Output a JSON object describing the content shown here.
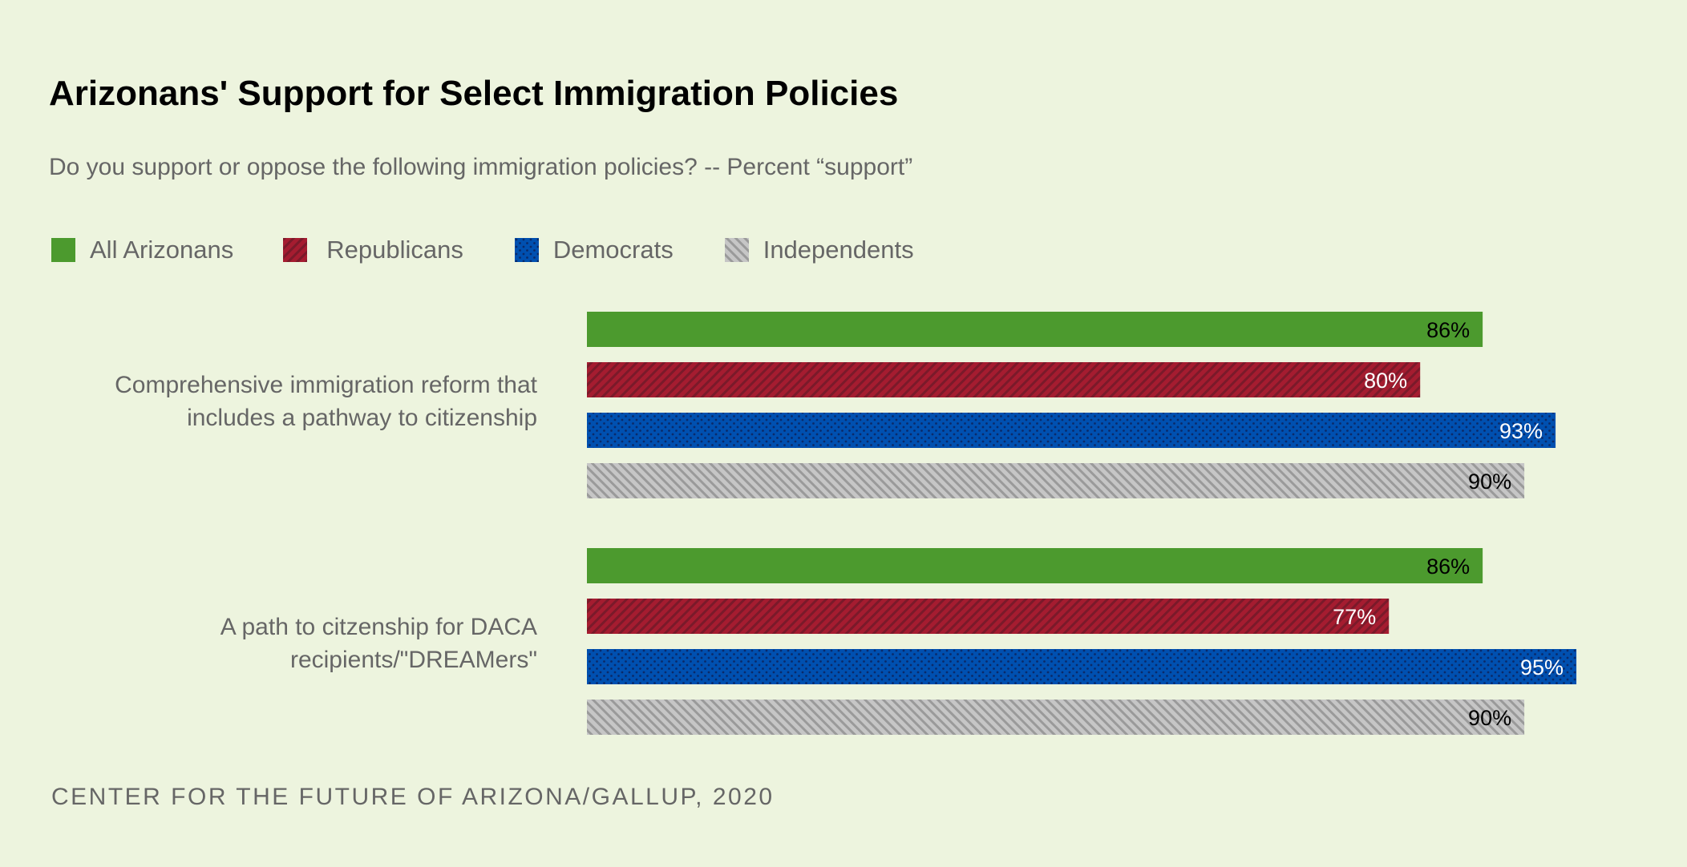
{
  "chart_data": {
    "type": "bar",
    "orientation": "horizontal",
    "title": "Arizonans' Support for Select Immigration Policies",
    "subtitle": "Do you support or oppose the following immigration policies? -- Percent “support”",
    "categories": [
      [
        "Comprehensive immigration reform that",
        "includes a pathway to citizenship"
      ],
      [
        "A path to citzenship for DACA",
        "recipients/\"DREAMers\""
      ]
    ],
    "series": [
      {
        "name": "All Arizonans",
        "values": [
          86,
          86
        ],
        "color": "#4c9a2e",
        "pattern": "solid",
        "label_color": "#000000"
      },
      {
        "name": "Republicans",
        "values": [
          80,
          77
        ],
        "color": "#a51c30",
        "pattern": "diagonal-stripes",
        "label_color": "#ffffff"
      },
      {
        "name": "Democrats",
        "values": [
          93,
          95
        ],
        "color": "#0050b0",
        "pattern": "dots",
        "label_color": "#ffffff"
      },
      {
        "name": "Independents",
        "values": [
          90,
          90
        ],
        "color": "#c4c4c4",
        "pattern": "diagonal-stripes-reverse",
        "label_color": "#000000"
      }
    ],
    "value_suffix": "%",
    "xlim": [
      0,
      100
    ],
    "grid": false,
    "legend_position": "top-left",
    "source": "CENTER FOR THE FUTURE OF ARIZONA/GALLUP, 2020"
  },
  "colors": {
    "background": "#edf4de"
  }
}
